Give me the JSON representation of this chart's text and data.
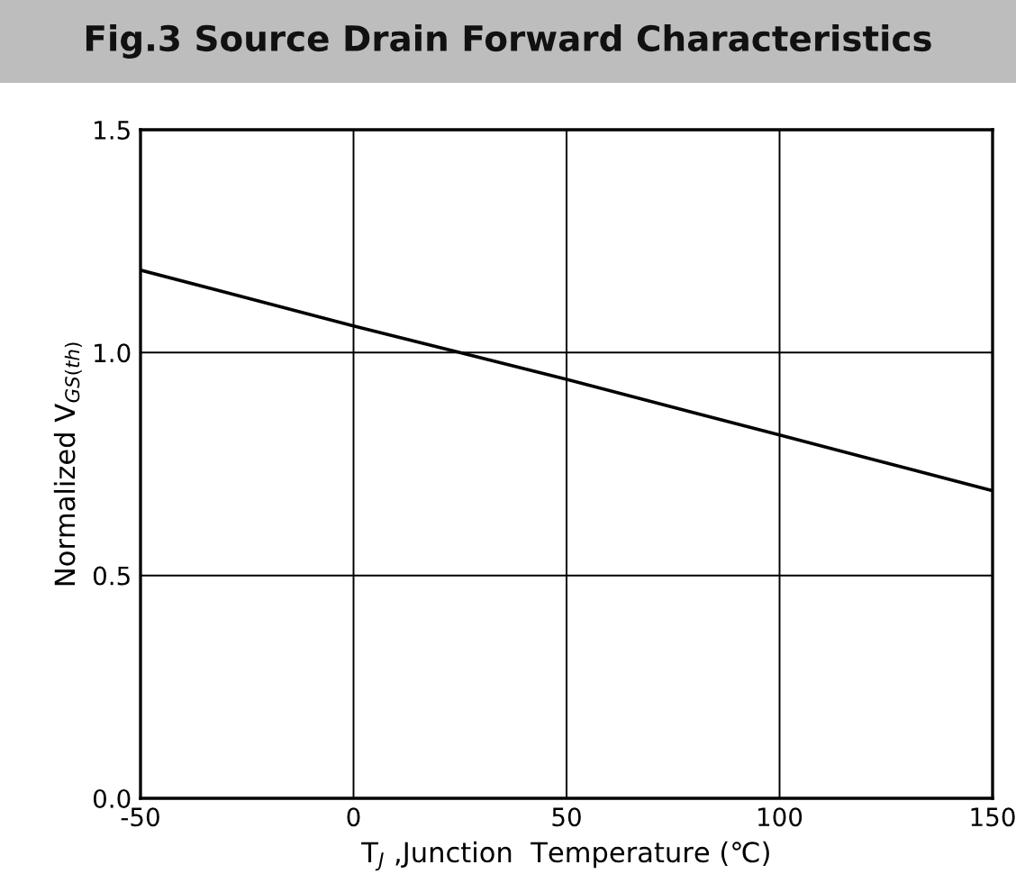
{
  "chart_data": {
    "type": "line",
    "title": "Fig.3 Source Drain Forward Characteristics",
    "xlabel": "T$_{J}$ ,Junction  Temperature (℃)",
    "ylabel": "Normalized V$_{GS(th)}$",
    "x": [
      -50,
      0,
      50,
      100,
      150
    ],
    "series": [
      {
        "color": "#000000",
        "values": [
          1.185,
          1.06,
          0.94,
          0.815,
          0.69
        ]
      }
    ],
    "xlim": [
      -50,
      150
    ],
    "xticks": [
      -50,
      0,
      50,
      100,
      150
    ],
    "ylim": [
      0,
      1.5
    ],
    "yticks": [
      {
        "value": 0,
        "label": "0.0"
      },
      {
        "value": 0.5,
        "label": "0.5"
      },
      {
        "value": 1,
        "label": "1.0"
      },
      {
        "value": 1.5,
        "label": "1.5"
      }
    ],
    "grid": true,
    "marker": "none",
    "line_style": "solid"
  }
}
